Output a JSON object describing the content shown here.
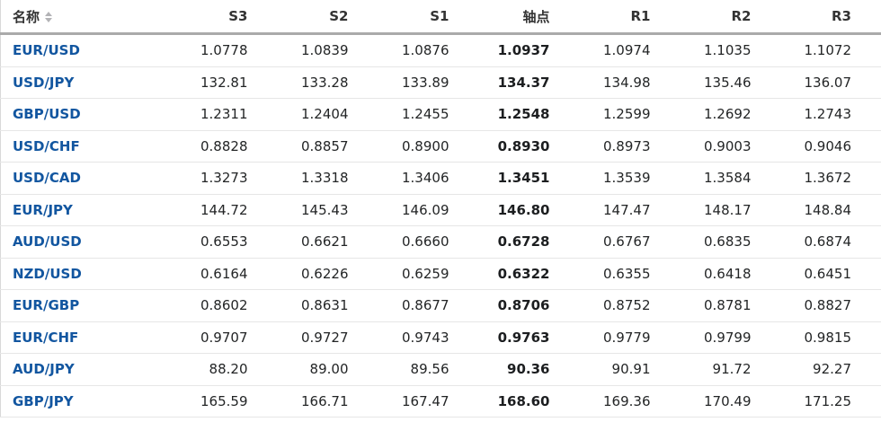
{
  "table": {
    "columns": [
      {
        "key": "name",
        "label": "名称",
        "sortable": true
      },
      {
        "key": "s3",
        "label": "S3"
      },
      {
        "key": "s2",
        "label": "S2"
      },
      {
        "key": "s1",
        "label": "S1"
      },
      {
        "key": "pivot",
        "label": "轴点",
        "bold": true
      },
      {
        "key": "r1",
        "label": "R1"
      },
      {
        "key": "r2",
        "label": "R2"
      },
      {
        "key": "r3",
        "label": "R3"
      }
    ],
    "rows": [
      {
        "name": "EUR/USD",
        "values": [
          "1.0778",
          "1.0839",
          "1.0876",
          "1.0937",
          "1.0974",
          "1.1035",
          "1.1072"
        ]
      },
      {
        "name": "USD/JPY",
        "values": [
          "132.81",
          "133.28",
          "133.89",
          "134.37",
          "134.98",
          "135.46",
          "136.07"
        ]
      },
      {
        "name": "GBP/USD",
        "values": [
          "1.2311",
          "1.2404",
          "1.2455",
          "1.2548",
          "1.2599",
          "1.2692",
          "1.2743"
        ]
      },
      {
        "name": "USD/CHF",
        "values": [
          "0.8828",
          "0.8857",
          "0.8900",
          "0.8930",
          "0.8973",
          "0.9003",
          "0.9046"
        ]
      },
      {
        "name": "USD/CAD",
        "values": [
          "1.3273",
          "1.3318",
          "1.3406",
          "1.3451",
          "1.3539",
          "1.3584",
          "1.3672"
        ]
      },
      {
        "name": "EUR/JPY",
        "values": [
          "144.72",
          "145.43",
          "146.09",
          "146.80",
          "147.47",
          "148.17",
          "148.84"
        ]
      },
      {
        "name": "AUD/USD",
        "values": [
          "0.6553",
          "0.6621",
          "0.6660",
          "0.6728",
          "0.6767",
          "0.6835",
          "0.6874"
        ]
      },
      {
        "name": "NZD/USD",
        "values": [
          "0.6164",
          "0.6226",
          "0.6259",
          "0.6322",
          "0.6355",
          "0.6418",
          "0.6451"
        ]
      },
      {
        "name": "EUR/GBP",
        "values": [
          "0.8602",
          "0.8631",
          "0.8677",
          "0.8706",
          "0.8752",
          "0.8781",
          "0.8827"
        ]
      },
      {
        "name": "EUR/CHF",
        "values": [
          "0.9707",
          "0.9727",
          "0.9743",
          "0.9763",
          "0.9779",
          "0.9799",
          "0.9815"
        ]
      },
      {
        "name": "AUD/JPY",
        "values": [
          "88.20",
          "89.00",
          "89.56",
          "90.36",
          "90.91",
          "91.72",
          "92.27"
        ]
      },
      {
        "name": "GBP/JPY",
        "values": [
          "165.59",
          "166.71",
          "167.47",
          "168.60",
          "169.36",
          "170.49",
          "171.25"
        ]
      }
    ]
  },
  "icons": {
    "sort": "sort-arrows-icon"
  },
  "colors": {
    "link_blue": "#1256a0",
    "header_text": "#333333",
    "body_text": "#232526",
    "header_rule": "#aaaaaa",
    "row_divider": "#e6e6e6"
  }
}
